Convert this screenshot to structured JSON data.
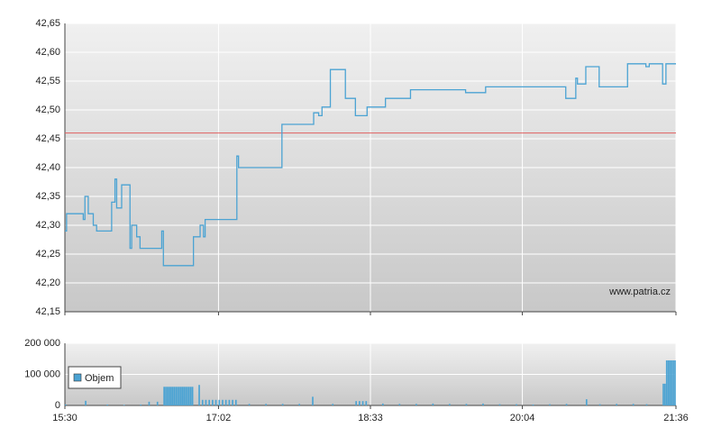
{
  "chart_data": [
    {
      "type": "line",
      "step": true,
      "color": "#4ba3d3",
      "watermark": "www.patria.cz",
      "x": [
        "15:30",
        "15:31",
        "15:41",
        "15:42",
        "15:44",
        "15:47",
        "15:49",
        "15:58",
        "16:00",
        "16:01",
        "16:04",
        "16:09",
        "16:10",
        "16:13",
        "16:15",
        "16:28",
        "16:29",
        "16:47",
        "16:51",
        "16:53",
        "16:54",
        "17:13",
        "17:14",
        "17:40",
        "17:59",
        "18:02",
        "18:04",
        "18:09",
        "18:18",
        "18:24",
        "18:31",
        "18:42",
        "18:57",
        "19:30",
        "19:42",
        "20:30",
        "20:36",
        "20:37",
        "20:42",
        "20:50",
        "21:07",
        "21:18",
        "21:20",
        "21:28",
        "21:30",
        "21:36"
      ],
      "values": [
        42.29,
        42.32,
        42.31,
        42.35,
        42.32,
        42.3,
        42.29,
        42.34,
        42.38,
        42.33,
        42.37,
        42.26,
        42.3,
        42.28,
        42.26,
        42.29,
        42.23,
        42.28,
        42.3,
        42.28,
        42.31,
        42.42,
        42.4,
        42.475,
        42.495,
        42.49,
        42.505,
        42.57,
        42.52,
        42.49,
        42.505,
        42.52,
        42.535,
        42.53,
        42.54,
        42.52,
        42.555,
        42.545,
        42.575,
        42.54,
        42.58,
        42.575,
        42.58,
        42.545,
        42.58,
        42.58
      ],
      "xlim": [
        "15:30",
        "21:36"
      ],
      "xticks": [
        "15:30",
        "17:02",
        "18:33",
        "20:04",
        "21:36"
      ],
      "ylim": [
        42.15,
        42.65
      ],
      "yticks": [
        {
          "value": 42.15,
          "label": "42,15"
        },
        {
          "value": 42.2,
          "label": "42,20"
        },
        {
          "value": 42.25,
          "label": "42,25"
        },
        {
          "value": 42.3,
          "label": "42,30"
        },
        {
          "value": 42.35,
          "label": "42,35"
        },
        {
          "value": 42.4,
          "label": "42,40"
        },
        {
          "value": 42.45,
          "label": "42,45"
        },
        {
          "value": 42.5,
          "label": "42,50"
        },
        {
          "value": 42.55,
          "label": "42,55"
        },
        {
          "value": 42.6,
          "label": "42,60"
        },
        {
          "value": 42.65,
          "label": "42,65"
        }
      ],
      "grid": true,
      "reference_line": {
        "value": 42.46,
        "color": "#e06060"
      }
    },
    {
      "type": "bar",
      "legend": "lower-left",
      "x": [
        "15:30",
        "15:42",
        "15:55",
        "16:05",
        "16:15",
        "16:20",
        "16:25",
        "16:29",
        "16:30",
        "16:31",
        "16:32",
        "16:33",
        "16:34",
        "16:35",
        "16:36",
        "16:37",
        "16:38",
        "16:39",
        "16:40",
        "16:41",
        "16:42",
        "16:43",
        "16:44",
        "16:45",
        "16:46",
        "16:50",
        "16:52",
        "16:54",
        "16:56",
        "16:58",
        "17:00",
        "17:02",
        "17:04",
        "17:06",
        "17:08",
        "17:10",
        "17:12",
        "17:20",
        "17:30",
        "17:40",
        "17:50",
        "17:58",
        "18:10",
        "18:24",
        "18:26",
        "18:28",
        "18:30",
        "18:40",
        "18:50",
        "19:00",
        "19:10",
        "19:20",
        "19:30",
        "19:40",
        "19:50",
        "20:00",
        "20:10",
        "20:20",
        "20:30",
        "20:42",
        "20:50",
        "21:00",
        "21:10",
        "21:18",
        "21:28",
        "21:29",
        "21:30",
        "21:31",
        "21:32",
        "21:33",
        "21:34",
        "21:35"
      ],
      "series": [
        {
          "name": "Objem",
          "color": "#4ba3d3",
          "values": [
            3000,
            15000,
            3000,
            2000,
            3000,
            12000,
            12000,
            60000,
            60000,
            60000,
            60000,
            60000,
            60000,
            60000,
            60000,
            60000,
            60000,
            60000,
            60000,
            60000,
            60000,
            60000,
            60000,
            60000,
            60000,
            66000,
            18000,
            18000,
            18000,
            18000,
            18000,
            18000,
            18000,
            18000,
            18000,
            18000,
            18000,
            5000,
            5000,
            5000,
            5000,
            28000,
            5000,
            14000,
            14000,
            14000,
            14000,
            6000,
            5000,
            5000,
            6000,
            5000,
            5000,
            6000,
            4000,
            4000,
            3000,
            4000,
            5000,
            20000,
            4000,
            5000,
            5000,
            4000,
            70000,
            70000,
            145000,
            145000,
            145000,
            145000,
            145000,
            145000
          ]
        }
      ],
      "xlim": [
        "15:30",
        "21:36"
      ],
      "xticks": [
        "15:30",
        "17:02",
        "18:33",
        "20:04",
        "21:36"
      ],
      "ylim": [
        0,
        200000
      ],
      "yticks": [
        0,
        {
          "value": 100000,
          "label": "100 000"
        },
        {
          "value": 200000,
          "label": "200 000"
        }
      ],
      "grid": true
    }
  ]
}
